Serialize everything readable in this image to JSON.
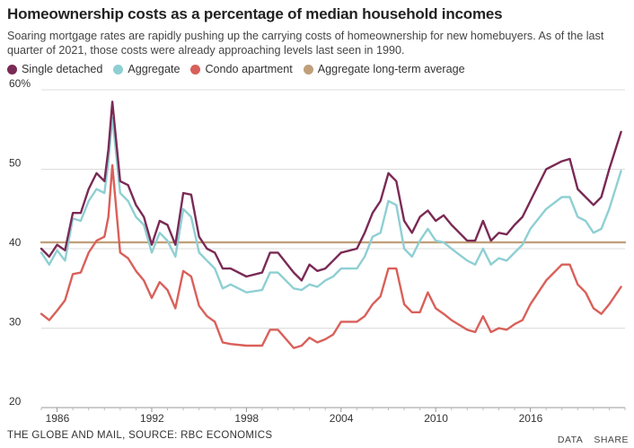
{
  "header": {
    "title": "Homeownership costs as a percentage of median household incomes",
    "subtitle": "Soaring mortgage rates are rapidly pushing up the carrying costs of homeownership for new homebuyers. As of the last quarter of 2021, those costs were already approaching levels last seen in 1990."
  },
  "legend": [
    {
      "label": "Single detached",
      "color": "#7a2a55"
    },
    {
      "label": "Aggregate",
      "color": "#8ecfd3"
    },
    {
      "label": "Condo apartment",
      "color": "#d9605a"
    },
    {
      "label": "Aggregate long-term average",
      "color": "#c0a07a"
    }
  ],
  "footer": {
    "source": "THE GLOBE AND MAIL, SOURCE: RBC ECONOMICS",
    "data_label": "DATA",
    "share_label": "SHARE"
  },
  "chart_data": {
    "type": "line",
    "title": "Homeownership costs as a percentage of median household incomes",
    "xlabel": "",
    "ylabel": "",
    "xlim": [
      1985,
      2022
    ],
    "ylim": [
      20,
      60
    ],
    "x_ticks": [
      1986,
      1992,
      1998,
      2004,
      2010,
      2016
    ],
    "x_tick_labels": [
      "1986",
      "1992",
      "1998",
      "2004",
      "2010",
      "2016"
    ],
    "y_ticks": [
      20,
      30,
      40,
      50,
      60
    ],
    "y_tick_labels": [
      "20",
      "30",
      "40",
      "50",
      "60%"
    ],
    "grid": true,
    "series": [
      {
        "name": "Aggregate long-term average",
        "color": "#c0a07a",
        "x": [
          1985,
          2022
        ],
        "values": [
          40.8,
          40.8
        ]
      },
      {
        "name": "Condo apartment",
        "color": "#d9605a",
        "x": [
          1985,
          1985.5,
          1986,
          1986.5,
          1987,
          1987.5,
          1988,
          1988.5,
          1989,
          1989.25,
          1989.5,
          1990,
          1990.5,
          1991,
          1991.5,
          1992,
          1992.5,
          1993,
          1993.5,
          1994,
          1994.5,
          1995,
          1995.5,
          1996,
          1996.5,
          1997,
          1998,
          1999,
          1999.5,
          2000,
          2001,
          2001.5,
          2002,
          2002.5,
          2003,
          2003.5,
          2004,
          2005,
          2005.5,
          2006,
          2006.5,
          2007,
          2007.5,
          2008,
          2008.5,
          2009,
          2009.5,
          2010,
          2010.5,
          2011,
          2012,
          2012.5,
          2013,
          2013.5,
          2014,
          2014.5,
          2015,
          2015.5,
          2016,
          2017,
          2018,
          2018.5,
          2019,
          2019.5,
          2020,
          2020.5,
          2021,
          2021.75
        ],
        "values": [
          31.8,
          31.0,
          32.2,
          33.5,
          36.8,
          37.0,
          39.5,
          41.0,
          41.5,
          44.0,
          50.5,
          39.5,
          38.8,
          37.2,
          36.0,
          33.8,
          35.8,
          34.8,
          32.5,
          37.2,
          36.5,
          32.8,
          31.5,
          30.8,
          28.2,
          28.0,
          27.8,
          27.8,
          29.8,
          29.8,
          27.5,
          27.8,
          28.8,
          28.2,
          28.6,
          29.2,
          30.8,
          30.8,
          31.5,
          33.0,
          34.0,
          37.5,
          37.5,
          33.0,
          32.0,
          32.0,
          34.5,
          32.5,
          31.8,
          31.0,
          29.8,
          29.5,
          31.5,
          29.5,
          30.0,
          29.8,
          30.5,
          31.0,
          33.0,
          36.0,
          38.0,
          38.0,
          35.5,
          34.5,
          32.5,
          31.8,
          33.0,
          35.2
        ]
      },
      {
        "name": "Aggregate",
        "color": "#8ecfd3",
        "x": [
          1985,
          1985.5,
          1986,
          1986.5,
          1987,
          1987.5,
          1988,
          1988.5,
          1989,
          1989.25,
          1989.5,
          1990,
          1990.5,
          1991,
          1991.5,
          1992,
          1992.5,
          1993,
          1993.5,
          1994,
          1994.5,
          1995,
          1995.5,
          1996,
          1996.5,
          1997,
          1998,
          1999,
          1999.5,
          2000,
          2001,
          2001.5,
          2002,
          2002.5,
          2003,
          2003.5,
          2004,
          2005,
          2005.5,
          2006,
          2006.5,
          2007,
          2007.5,
          2008,
          2008.5,
          2009,
          2009.5,
          2010,
          2010.5,
          2011,
          2012,
          2012.5,
          2013,
          2013.5,
          2014,
          2014.5,
          2015,
          2015.5,
          2016,
          2017,
          2018,
          2018.5,
          2019,
          2019.5,
          2020,
          2020.5,
          2021,
          2021.75
        ],
        "values": [
          39.5,
          38.0,
          39.8,
          38.5,
          43.8,
          43.5,
          46.0,
          47.5,
          47.0,
          51.0,
          56.5,
          47.0,
          46.0,
          44.0,
          43.0,
          39.5,
          42.0,
          41.0,
          39.0,
          45.0,
          44.0,
          39.5,
          38.5,
          37.5,
          35.0,
          35.5,
          34.5,
          34.8,
          37.0,
          37.0,
          35.0,
          34.8,
          35.5,
          35.2,
          36.0,
          36.5,
          37.5,
          37.5,
          39.0,
          41.5,
          42.0,
          46.0,
          45.5,
          40.0,
          39.0,
          41.0,
          42.5,
          41.0,
          40.8,
          40.0,
          38.5,
          38.0,
          40.0,
          38.0,
          38.8,
          38.5,
          39.5,
          40.5,
          42.5,
          45.0,
          46.5,
          46.5,
          44.0,
          43.5,
          42.0,
          42.5,
          45.0,
          49.8
        ]
      },
      {
        "name": "Single detached",
        "color": "#7a2a55",
        "x": [
          1985,
          1985.5,
          1986,
          1986.5,
          1987,
          1987.5,
          1988,
          1988.5,
          1989,
          1989.25,
          1989.5,
          1990,
          1990.5,
          1991,
          1991.5,
          1992,
          1992.5,
          1993,
          1993.5,
          1994,
          1994.5,
          1995,
          1995.5,
          1996,
          1996.5,
          1997,
          1998,
          1999,
          1999.5,
          2000,
          2001,
          2001.5,
          2002,
          2002.5,
          2003,
          2003.5,
          2004,
          2005,
          2005.5,
          2006,
          2006.5,
          2007,
          2007.5,
          2008,
          2008.5,
          2009,
          2009.5,
          2010,
          2010.5,
          2011,
          2012,
          2012.5,
          2013,
          2013.5,
          2014,
          2014.5,
          2015,
          2015.5,
          2016,
          2017,
          2018,
          2018.5,
          2019,
          2019.5,
          2020,
          2020.5,
          2021,
          2021.75
        ],
        "values": [
          40.0,
          39.0,
          40.5,
          39.8,
          44.5,
          44.5,
          47.5,
          49.5,
          48.5,
          52.5,
          58.5,
          48.5,
          48.0,
          45.5,
          44.0,
          40.5,
          43.5,
          43.0,
          40.5,
          47.0,
          46.8,
          41.5,
          40.0,
          39.5,
          37.5,
          37.5,
          36.5,
          37.0,
          39.5,
          39.5,
          37.0,
          36.0,
          38.0,
          37.2,
          37.5,
          38.5,
          39.5,
          40.0,
          42.0,
          44.5,
          46.0,
          49.5,
          48.5,
          43.5,
          42.0,
          44.0,
          44.8,
          43.5,
          44.2,
          43.0,
          41.0,
          41.0,
          43.5,
          41.0,
          42.0,
          41.8,
          43.0,
          44.0,
          46.0,
          50.0,
          51.0,
          51.3,
          47.5,
          46.5,
          45.5,
          46.5,
          50.0,
          54.7
        ]
      }
    ]
  }
}
